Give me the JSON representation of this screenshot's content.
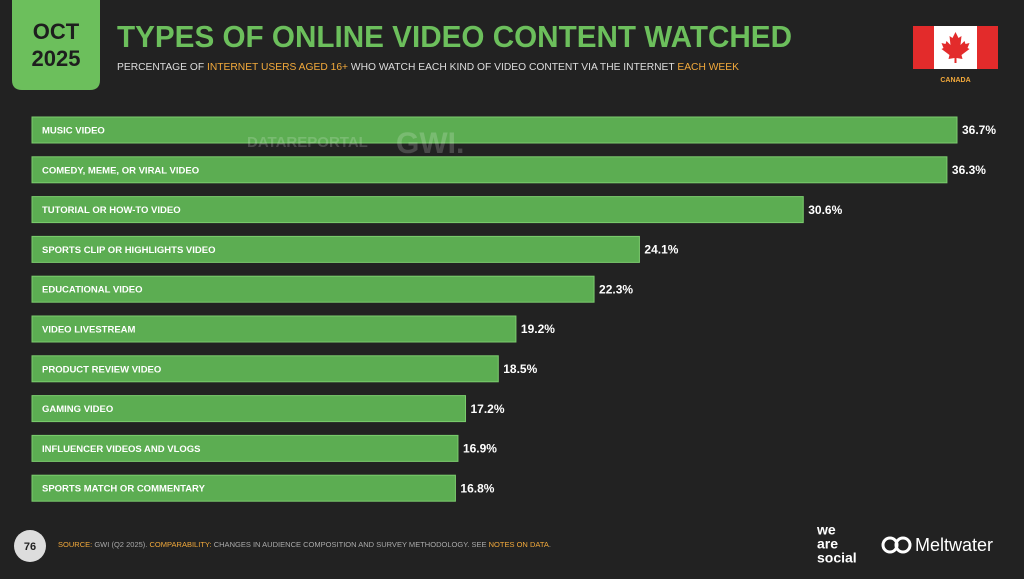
{
  "header": {
    "month": "OCT",
    "year": "2025",
    "title": "TYPES OF ONLINE VIDEO CONTENT WATCHED",
    "subtitle": [
      {
        "text": "PERCENTAGE OF ",
        "highlight": false
      },
      {
        "text": "INTERNET USERS AGED 16+",
        "highlight": true
      },
      {
        "text": " WHO WATCH EACH KIND OF VIDEO CONTENT VIA THE INTERNET ",
        "highlight": false
      },
      {
        "text": "EACH WEEK",
        "highlight": true
      }
    ],
    "country": "CANADA"
  },
  "watermarks": [
    "DATAREPORTAL",
    "GWI."
  ],
  "chart_data": {
    "type": "bar",
    "orientation": "horizontal",
    "color": "#5cad52",
    "categories": [
      "MUSIC VIDEO",
      "COMEDY, MEME, OR VIRAL VIDEO",
      "TUTORIAL OR HOW-TO VIDEO",
      "SPORTS CLIP OR HIGHLIGHTS VIDEO",
      "EDUCATIONAL VIDEO",
      "VIDEO LIVESTREAM",
      "PRODUCT REVIEW VIDEO",
      "GAMING VIDEO",
      "INFLUENCER VIDEOS AND VLOGS",
      "SPORTS MATCH OR COMMENTARY"
    ],
    "values": [
      36.7,
      36.3,
      30.6,
      24.1,
      22.3,
      19.2,
      18.5,
      17.2,
      16.9,
      16.8
    ],
    "value_labels": [
      "36.7%",
      "36.3%",
      "30.6%",
      "24.1%",
      "22.3%",
      "19.2%",
      "18.5%",
      "17.2%",
      "16.9%",
      "16.8%"
    ]
  },
  "footer": {
    "page": "76",
    "source": [
      {
        "text": "SOURCE:",
        "highlight": true
      },
      {
        "text": " GWI (Q2 2025). ",
        "highlight": false
      },
      {
        "text": "COMPARABILITY:",
        "highlight": true
      },
      {
        "text": " CHANGES IN AUDIENCE COMPOSITION AND SURVEY METHODOLOGY. SEE ",
        "highlight": false
      },
      {
        "text": "NOTES ON DATA",
        "highlight": true
      },
      {
        "text": ".",
        "highlight": false
      }
    ],
    "logo_left": [
      "we",
      "are",
      "social"
    ],
    "logo_right": "Meltwater"
  }
}
